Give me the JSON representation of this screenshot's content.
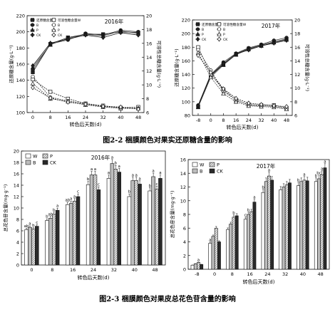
{
  "figure_2_2": {
    "caption": "图2-2   梱膜颜色对果实还原糖含量的影响",
    "legend": [
      "还原糖含量W",
      "可溶性糖含量W",
      "B",
      "B",
      "P",
      "P",
      "CK",
      "CK"
    ]
  },
  "figure_2_3": {
    "caption": "图2-3   梱膜颜色对果皮总花色苷含量的影响"
  },
  "chart_data": [
    {
      "type": "line",
      "title": "2016年",
      "xlabel": "转色后天数(d)",
      "ylabel": "还原糖含量(g·L⁻¹)",
      "ylabel_right": "可溶性总糖含量(g·L⁻¹)",
      "x": [
        "0",
        "8",
        "16",
        "24",
        "32",
        "40",
        "48"
      ],
      "ylim": [
        100,
        220
      ],
      "yticks": [
        "100",
        "120",
        "140",
        "160",
        "180",
        "200",
        "220"
      ],
      "ylim_right": [
        6,
        20
      ],
      "yticks_right": [
        "6",
        "8",
        "10",
        "12",
        "14",
        "16",
        "18",
        "20"
      ],
      "legend": [
        "还原糖含量W",
        "可溶性糖含量W",
        "B",
        "B",
        "P",
        "P",
        "CK",
        "CK"
      ],
      "series": [
        {
          "name": "W",
          "axis": "left",
          "values": [
            150,
            185,
            193,
            197,
            197,
            200,
            199
          ]
        },
        {
          "name": "B",
          "axis": "left",
          "values": [
            153,
            185,
            190,
            198,
            196,
            202,
            200
          ]
        },
        {
          "name": "P",
          "axis": "left",
          "values": [
            156,
            184,
            192,
            197,
            195,
            201,
            198
          ]
        },
        {
          "name": "CK",
          "axis": "left",
          "values": [
            158,
            186,
            191,
            196,
            193,
            199,
            196
          ]
        },
        {
          "name": "W",
          "axis": "right",
          "values": [
            10.8,
            9.0,
            8.0,
            7.3,
            7.0,
            6.7,
            6.8
          ]
        },
        {
          "name": "B",
          "axis": "right",
          "values": [
            11.2,
            8.2,
            7.7,
            7.3,
            6.8,
            6.7,
            6.6
          ]
        },
        {
          "name": "P",
          "axis": "right",
          "values": [
            10.2,
            8.0,
            7.6,
            7.1,
            6.8,
            6.6,
            6.6
          ]
        },
        {
          "name": "CK",
          "axis": "right",
          "values": [
            9.6,
            8.1,
            7.5,
            7.2,
            6.9,
            6.8,
            6.5
          ]
        }
      ]
    },
    {
      "type": "line",
      "title": "2017年",
      "xlabel": "转色后天数(d)",
      "ylabel": "还原糖含量(g·L⁻¹)",
      "ylabel_right": "可溶性总糖含量(g·L⁻¹)",
      "x": [
        "-8",
        "0",
        "8",
        "16",
        "24",
        "32",
        "40",
        "48"
      ],
      "ylim": [
        80,
        220
      ],
      "yticks": [
        "80",
        "100",
        "120",
        "140",
        "160",
        "180",
        "200",
        "220"
      ],
      "ylim_right": [
        6,
        20
      ],
      "yticks_right": [
        "6",
        "8",
        "10",
        "12",
        "14",
        "16",
        "18",
        "20"
      ],
      "legend": [
        "还原糖含量W",
        "可溶性糖含量W",
        "B",
        "B",
        "P",
        "P",
        "CK",
        "CK"
      ],
      "series": [
        {
          "name": "W",
          "axis": "left",
          "values": [
            93,
            138,
            155,
            170,
            178,
            183,
            188,
            192
          ]
        },
        {
          "name": "B",
          "axis": "left",
          "values": [
            95,
            140,
            158,
            171,
            179,
            184,
            190,
            194
          ]
        },
        {
          "name": "P",
          "axis": "left",
          "values": [
            92,
            136,
            154,
            169,
            177,
            182,
            187,
            191
          ]
        },
        {
          "name": "CK",
          "axis": "left",
          "values": [
            94,
            139,
            156,
            170,
            176,
            182,
            186,
            190
          ]
        },
        {
          "name": "W",
          "axis": "right",
          "values": [
            16.0,
            12.0,
            9.8,
            8.2,
            7.6,
            7.5,
            7.5,
            7.1
          ]
        },
        {
          "name": "B",
          "axis": "right",
          "values": [
            15.6,
            12.6,
            9.5,
            8.3,
            7.5,
            7.4,
            7.3,
            7.0
          ]
        },
        {
          "name": "P",
          "axis": "right",
          "values": [
            15.2,
            11.6,
            9.2,
            8.0,
            7.4,
            7.3,
            7.2,
            6.9
          ]
        },
        {
          "name": "CK",
          "axis": "right",
          "values": [
            14.8,
            12.3,
            9.9,
            8.5,
            7.8,
            7.6,
            7.4,
            7.3
          ]
        }
      ]
    },
    {
      "type": "bar",
      "title": "2016年",
      "xlabel": "转色后天数(d)",
      "ylabel": "总花色苷含量(mg·g⁻¹)",
      "categories": [
        "0",
        "8",
        "16",
        "24",
        "32",
        "40",
        "48"
      ],
      "ylim": [
        0,
        20
      ],
      "yticks": [
        "0",
        "2",
        "4",
        "6",
        "8",
        "10",
        "12",
        "14",
        "16",
        "18",
        "20"
      ],
      "legend": [
        "W",
        "B",
        "P",
        "CK"
      ],
      "series": [
        {
          "name": "W",
          "values": [
            6.2,
            7.8,
            10.6,
            14.1,
            15.2,
            12.0,
            13.0
          ],
          "labels": [
            "ab",
            "b",
            "ab",
            "b",
            "a",
            "b",
            "b"
          ]
        },
        {
          "name": "B",
          "values": [
            6.6,
            8.2,
            10.8,
            15.8,
            17.8,
            14.8,
            15.5
          ],
          "labels": [
            "a",
            "ab",
            "a",
            "a",
            "a",
            "a",
            "a"
          ]
        },
        {
          "name": "P",
          "values": [
            6.3,
            8.9,
            11.2,
            15.8,
            16.8,
            14.8,
            13.3
          ],
          "labels": [
            "b",
            "b",
            "a",
            "a",
            "b",
            "a",
            "c"
          ]
        },
        {
          "name": "CK",
          "values": [
            6.8,
            9.6,
            12.0,
            13.2,
            16.3,
            14.2,
            15.2
          ],
          "labels": [
            "c",
            "a",
            "c",
            "c",
            "a",
            "a",
            "a"
          ]
        }
      ]
    },
    {
      "type": "bar",
      "title": "2017年",
      "xlabel": "转色后天数(d)",
      "ylabel": "总花色苷含量(mg·g⁻¹)",
      "categories": [
        "-8",
        "0",
        "8",
        "16",
        "24",
        "32",
        "40",
        "48"
      ],
      "ylim": [
        0,
        16
      ],
      "yticks": [
        "0",
        "2",
        "4",
        "6",
        "8",
        "10",
        "12",
        "14",
        "16"
      ],
      "legend": [
        "W",
        "B",
        "P",
        "CK"
      ],
      "series": [
        {
          "name": "W",
          "values": [
            0.6,
            3.8,
            5.8,
            7.3,
            11.2,
            11.6,
            12.2,
            12.8
          ],
          "labels": [
            "",
            "a",
            "",
            "c",
            "b",
            "",
            "b",
            "b"
          ]
        },
        {
          "name": "B",
          "values": [
            0.8,
            4.8,
            6.6,
            8.0,
            12.8,
            12.0,
            12.8,
            13.2
          ],
          "labels": [
            "",
            "",
            "",
            "b",
            "",
            "",
            "",
            "bc"
          ]
        },
        {
          "name": "P",
          "values": [
            1.0,
            6.0,
            7.6,
            8.4,
            13.6,
            12.3,
            13.0,
            13.8
          ],
          "labels": [
            "a",
            "",
            "b",
            "",
            "a",
            "",
            "a",
            "a"
          ]
        },
        {
          "name": "CK",
          "values": [
            0.7,
            4.0,
            7.8,
            9.8,
            13.0,
            12.6,
            12.9,
            14.8
          ],
          "labels": [
            "",
            "",
            "",
            "a",
            "",
            "",
            "",
            "a"
          ]
        }
      ]
    }
  ]
}
